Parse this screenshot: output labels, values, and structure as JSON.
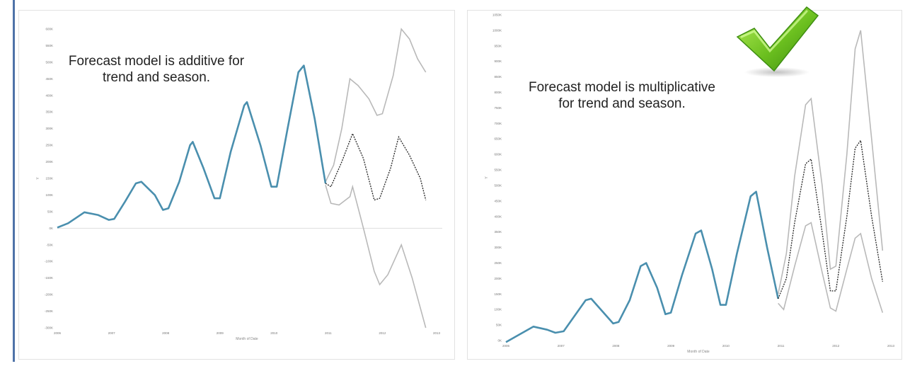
{
  "colors": {
    "actual": "#4a8fae",
    "forecast": "#222222",
    "bound": "#b9b9b9",
    "accent_bar": "#4f73a8",
    "check": "#6bbf1f"
  },
  "left": {
    "annotation": "Forecast model is additive for\ntrend and season.",
    "ylabel": "Y",
    "xlabel": "Month of Date"
  },
  "right": {
    "annotation": "Forecast model is multiplicative\nfor trend and season.",
    "ylabel": "Y",
    "xlabel": "Month of Date"
  },
  "badge_icon": "green-checkmark-icon",
  "chart_data": [
    {
      "type": "line",
      "title": "",
      "xlabel": "Month of Date",
      "ylabel": "Y",
      "x_ticks": [
        "2006",
        "2007",
        "2008",
        "2009",
        "2010",
        "2011",
        "2012",
        "2013"
      ],
      "xlim": [
        2006,
        2013
      ],
      "y_ticks": [
        "-300K",
        "-250K",
        "-200K",
        "-150K",
        "-100K",
        "-50K",
        "0K",
        "50K",
        "100K",
        "150K",
        "200K",
        "250K",
        "300K",
        "350K",
        "400K",
        "450K",
        "500K",
        "550K",
        "600K"
      ],
      "ylim": [
        -300000,
        600000
      ],
      "zero_line": true,
      "series": [
        {
          "role": "actual",
          "points": [
            [
              2006.0,
              2000
            ],
            [
              2006.2,
              15000
            ],
            [
              2006.5,
              48000
            ],
            [
              2006.75,
              40000
            ],
            [
              2006.95,
              25000
            ],
            [
              2007.05,
              28000
            ],
            [
              2007.25,
              80000
            ],
            [
              2007.45,
              135000
            ],
            [
              2007.55,
              140000
            ],
            [
              2007.8,
              100000
            ],
            [
              2007.95,
              55000
            ],
            [
              2008.05,
              60000
            ],
            [
              2008.25,
              140000
            ],
            [
              2008.45,
              250000
            ],
            [
              2008.5,
              260000
            ],
            [
              2008.7,
              180000
            ],
            [
              2008.9,
              90000
            ],
            [
              2009.0,
              90000
            ],
            [
              2009.2,
              230000
            ],
            [
              2009.45,
              370000
            ],
            [
              2009.5,
              380000
            ],
            [
              2009.75,
              250000
            ],
            [
              2009.95,
              125000
            ],
            [
              2010.05,
              125000
            ],
            [
              2010.25,
              300000
            ],
            [
              2010.45,
              470000
            ],
            [
              2010.55,
              490000
            ],
            [
              2010.75,
              330000
            ],
            [
              2010.95,
              135000
            ]
          ]
        },
        {
          "role": "forecast",
          "points": [
            [
              2010.95,
              135000
            ],
            [
              2011.05,
              125000
            ],
            [
              2011.25,
              200000
            ],
            [
              2011.45,
              285000
            ],
            [
              2011.65,
              210000
            ],
            [
              2011.85,
              85000
            ],
            [
              2011.95,
              90000
            ],
            [
              2012.15,
              180000
            ],
            [
              2012.3,
              275000
            ],
            [
              2012.5,
              220000
            ],
            [
              2012.7,
              150000
            ],
            [
              2012.8,
              85000
            ]
          ]
        },
        {
          "role": "upper",
          "points": [
            [
              2010.95,
              140000
            ],
            [
              2011.1,
              190000
            ],
            [
              2011.25,
              300000
            ],
            [
              2011.4,
              450000
            ],
            [
              2011.55,
              430000
            ],
            [
              2011.75,
              390000
            ],
            [
              2011.9,
              340000
            ],
            [
              2012.0,
              345000
            ],
            [
              2012.2,
              460000
            ],
            [
              2012.35,
              600000
            ],
            [
              2012.5,
              570000
            ],
            [
              2012.65,
              510000
            ],
            [
              2012.8,
              470000
            ]
          ]
        },
        {
          "role": "lower",
          "points": [
            [
              2010.95,
              130000
            ],
            [
              2011.05,
              75000
            ],
            [
              2011.2,
              70000
            ],
            [
              2011.4,
              95000
            ],
            [
              2011.45,
              125000
            ],
            [
              2011.65,
              0
            ],
            [
              2011.85,
              -130000
            ],
            [
              2011.95,
              -170000
            ],
            [
              2012.1,
              -140000
            ],
            [
              2012.35,
              -50000
            ],
            [
              2012.55,
              -150000
            ],
            [
              2012.8,
              -300000
            ]
          ]
        }
      ]
    },
    {
      "type": "line",
      "title": "",
      "xlabel": "Month of Date",
      "ylabel": "Y",
      "x_ticks": [
        "2006",
        "2007",
        "2008",
        "2009",
        "2010",
        "2011",
        "2012",
        "2013"
      ],
      "xlim": [
        2006,
        2013
      ],
      "y_ticks": [
        "0K",
        "50K",
        "100K",
        "150K",
        "200K",
        "250K",
        "300K",
        "350K",
        "400K",
        "450K",
        "500K",
        "550K",
        "600K",
        "650K",
        "700K",
        "750K",
        "800K",
        "850K",
        "900K",
        "950K",
        "1000K",
        "1050K"
      ],
      "ylim": [
        0,
        1050000
      ],
      "zero_line": false,
      "series": [
        {
          "role": "actual",
          "points": [
            [
              2006.0,
              -5000
            ],
            [
              2006.25,
              20000
            ],
            [
              2006.5,
              45000
            ],
            [
              2006.75,
              35000
            ],
            [
              2006.9,
              25000
            ],
            [
              2007.05,
              30000
            ],
            [
              2007.25,
              80000
            ],
            [
              2007.45,
              130000
            ],
            [
              2007.55,
              135000
            ],
            [
              2007.75,
              95000
            ],
            [
              2007.95,
              55000
            ],
            [
              2008.05,
              60000
            ],
            [
              2008.25,
              130000
            ],
            [
              2008.45,
              240000
            ],
            [
              2008.55,
              250000
            ],
            [
              2008.75,
              170000
            ],
            [
              2008.9,
              85000
            ],
            [
              2009.0,
              90000
            ],
            [
              2009.2,
              210000
            ],
            [
              2009.45,
              345000
            ],
            [
              2009.55,
              355000
            ],
            [
              2009.75,
              230000
            ],
            [
              2009.9,
              115000
            ],
            [
              2010.0,
              115000
            ],
            [
              2010.2,
              280000
            ],
            [
              2010.45,
              465000
            ],
            [
              2010.55,
              480000
            ],
            [
              2010.75,
              300000
            ],
            [
              2010.95,
              135000
            ]
          ]
        },
        {
          "role": "forecast",
          "points": [
            [
              2010.95,
              135000
            ],
            [
              2011.1,
              200000
            ],
            [
              2011.25,
              380000
            ],
            [
              2011.45,
              570000
            ],
            [
              2011.55,
              585000
            ],
            [
              2011.75,
              350000
            ],
            [
              2011.9,
              160000
            ],
            [
              2012.0,
              160000
            ],
            [
              2012.2,
              400000
            ],
            [
              2012.35,
              620000
            ],
            [
              2012.45,
              645000
            ],
            [
              2012.65,
              400000
            ],
            [
              2012.85,
              190000
            ]
          ]
        },
        {
          "role": "upper",
          "points": [
            [
              2010.95,
              150000
            ],
            [
              2011.1,
              280000
            ],
            [
              2011.25,
              530000
            ],
            [
              2011.45,
              760000
            ],
            [
              2011.55,
              780000
            ],
            [
              2011.75,
              500000
            ],
            [
              2011.9,
              230000
            ],
            [
              2012.0,
              240000
            ],
            [
              2012.2,
              600000
            ],
            [
              2012.35,
              940000
            ],
            [
              2012.45,
              1000000
            ],
            [
              2012.65,
              650000
            ],
            [
              2012.85,
              290000
            ]
          ]
        },
        {
          "role": "lower",
          "points": [
            [
              2010.95,
              120000
            ],
            [
              2011.05,
              100000
            ],
            [
              2011.25,
              240000
            ],
            [
              2011.45,
              370000
            ],
            [
              2011.55,
              380000
            ],
            [
              2011.75,
              220000
            ],
            [
              2011.9,
              105000
            ],
            [
              2012.0,
              95000
            ],
            [
              2012.2,
              230000
            ],
            [
              2012.35,
              330000
            ],
            [
              2012.45,
              345000
            ],
            [
              2012.65,
              200000
            ],
            [
              2012.85,
              90000
            ]
          ]
        }
      ]
    }
  ]
}
